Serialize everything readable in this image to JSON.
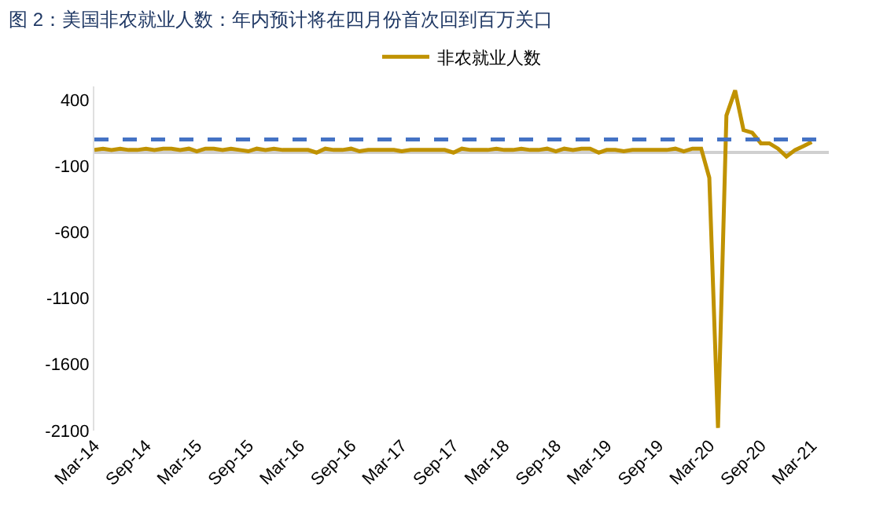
{
  "chart_data": {
    "type": "line",
    "title": "图 2：美国非农就业人数：年内预计将在四月份首次回到百万关口",
    "x": [
      "2014-03",
      "2014-04",
      "2014-05",
      "2014-06",
      "2014-07",
      "2014-08",
      "2014-09",
      "2014-10",
      "2014-11",
      "2014-12",
      "2015-01",
      "2015-02",
      "2015-03",
      "2015-04",
      "2015-05",
      "2015-06",
      "2015-07",
      "2015-08",
      "2015-09",
      "2015-10",
      "2015-11",
      "2015-12",
      "2016-01",
      "2016-02",
      "2016-03",
      "2016-04",
      "2016-05",
      "2016-06",
      "2016-07",
      "2016-08",
      "2016-09",
      "2016-10",
      "2016-11",
      "2016-12",
      "2017-01",
      "2017-02",
      "2017-03",
      "2017-04",
      "2017-05",
      "2017-06",
      "2017-07",
      "2017-08",
      "2017-09",
      "2017-10",
      "2017-11",
      "2017-12",
      "2018-01",
      "2018-02",
      "2018-03",
      "2018-04",
      "2018-05",
      "2018-06",
      "2018-07",
      "2018-08",
      "2018-09",
      "2018-10",
      "2018-11",
      "2018-12",
      "2019-01",
      "2019-02",
      "2019-03",
      "2019-04",
      "2019-05",
      "2019-06",
      "2019-07",
      "2019-08",
      "2019-09",
      "2019-10",
      "2019-11",
      "2019-12",
      "2020-01",
      "2020-02",
      "2020-03",
      "2020-04",
      "2020-05",
      "2020-06",
      "2020-07",
      "2020-08",
      "2020-09",
      "2020-10",
      "2020-11",
      "2020-12",
      "2021-01",
      "2021-02",
      "2021-03"
    ],
    "series": [
      {
        "name": "非农就业人数",
        "color": "#c09200",
        "values": [
          20,
          30,
          20,
          30,
          20,
          20,
          30,
          20,
          30,
          30,
          20,
          30,
          10,
          30,
          30,
          20,
          30,
          20,
          10,
          30,
          20,
          30,
          20,
          20,
          20,
          20,
          0,
          30,
          20,
          20,
          30,
          10,
          20,
          20,
          20,
          20,
          10,
          20,
          20,
          20,
          20,
          20,
          0,
          30,
          20,
          20,
          20,
          30,
          20,
          20,
          30,
          20,
          20,
          30,
          10,
          30,
          20,
          30,
          30,
          0,
          20,
          20,
          10,
          20,
          20,
          20,
          20,
          20,
          30,
          10,
          30,
          30,
          -190,
          -2080,
          280,
          470,
          170,
          150,
          70,
          70,
          30,
          -30,
          20,
          50,
          80
        ]
      }
    ],
    "xlim": [
      "2014-03",
      "2021-05"
    ],
    "xticks": [
      {
        "value": "2014-03",
        "label": "Mar-14"
      },
      {
        "value": "2014-09",
        "label": "Sep-14"
      },
      {
        "value": "2015-03",
        "label": "Mar-15"
      },
      {
        "value": "2015-09",
        "label": "Sep-15"
      },
      {
        "value": "2016-03",
        "label": "Mar-16"
      },
      {
        "value": "2016-09",
        "label": "Sep-16"
      },
      {
        "value": "2017-03",
        "label": "Mar-17"
      },
      {
        "value": "2017-09",
        "label": "Sep-17"
      },
      {
        "value": "2018-03",
        "label": "Mar-18"
      },
      {
        "value": "2018-09",
        "label": "Sep-18"
      },
      {
        "value": "2019-03",
        "label": "Mar-19"
      },
      {
        "value": "2019-09",
        "label": "Sep-19"
      },
      {
        "value": "2020-03",
        "label": "Mar-20"
      },
      {
        "value": "2020-09",
        "label": "Sep-20"
      },
      {
        "value": "2021-03",
        "label": "Mar-21"
      }
    ],
    "ylim": [
      -2100,
      500
    ],
    "yticks": [
      -2100,
      -1600,
      -1100,
      -600,
      -100,
      400
    ],
    "ref_lines": [
      {
        "axis": "y",
        "value": 100,
        "color": "#4472c4",
        "line_style": "dashed"
      }
    ],
    "grid": false,
    "legend": "top",
    "marker": "none",
    "line_style": "solid"
  }
}
